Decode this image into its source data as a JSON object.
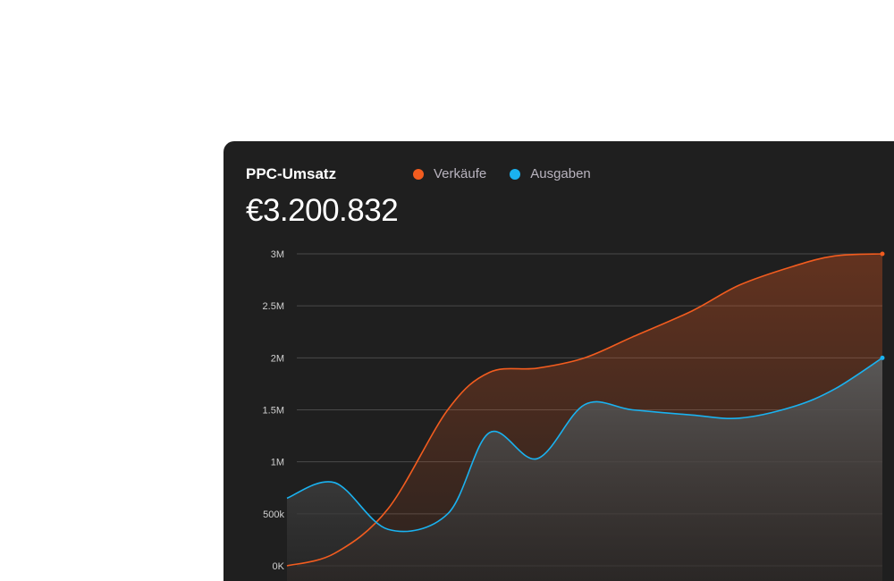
{
  "card": {
    "title": "PPC-Umsatz",
    "total": "€3.200.832"
  },
  "chart_data": {
    "type": "area",
    "title": "PPC-Umsatz",
    "xlabel": "",
    "ylabel": "",
    "ylim": [
      0,
      3000000
    ],
    "yticks": [
      {
        "value": 0,
        "label": "0K"
      },
      {
        "value": 500000,
        "label": "500k"
      },
      {
        "value": 1000000,
        "label": "1M"
      },
      {
        "value": 1500000,
        "label": "1.5M"
      },
      {
        "value": 2000000,
        "label": "2M"
      },
      {
        "value": 2500000,
        "label": "2.5M"
      },
      {
        "value": 3000000,
        "label": "3M"
      }
    ],
    "grid": true,
    "legend_position": "top",
    "x": [
      0,
      0.08,
      0.17,
      0.27,
      0.34,
      0.42,
      0.5,
      0.58,
      0.68,
      0.76,
      0.85,
      0.92,
      1.0
    ],
    "series": [
      {
        "name": "Verkäufe",
        "color": "#f25c1f",
        "values": [
          0,
          120000,
          550000,
          1500000,
          1860000,
          1900000,
          2000000,
          2200000,
          2450000,
          2700000,
          2880000,
          2980000,
          3000000
        ]
      },
      {
        "name": "Ausgaben",
        "color": "#1ab2f0",
        "values": [
          650000,
          800000,
          350000,
          500000,
          1280000,
          1030000,
          1550000,
          1500000,
          1450000,
          1420000,
          1530000,
          1700000,
          2000000
        ]
      }
    ]
  }
}
